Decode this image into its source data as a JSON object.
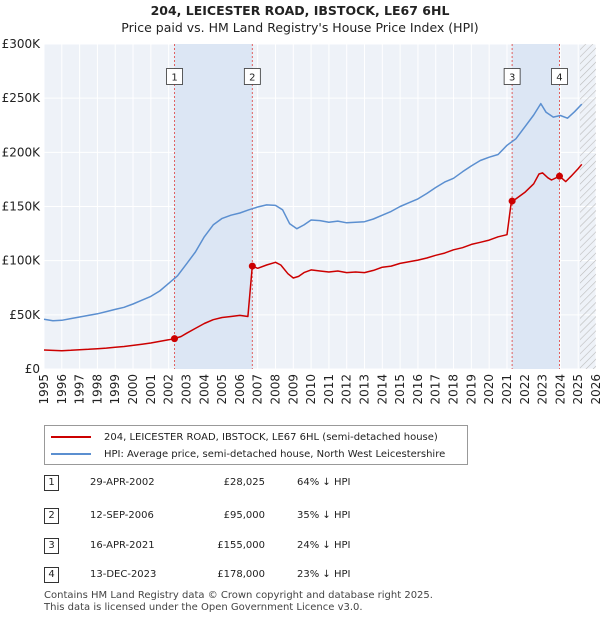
{
  "header": {
    "title": "204, LEICESTER ROAD, IBSTOCK, LE67 6HL",
    "subtitle": "Price paid vs. HM Land Registry's House Price Index (HPI)"
  },
  "chart_data": {
    "type": "line",
    "title": "204, LEICESTER ROAD, IBSTOCK, LE67 6HL",
    "subtitle": "Price paid vs. HM Land Registry's House Price Index (HPI)",
    "xlabel": "",
    "ylabel": "",
    "xlim": [
      1995,
      2026
    ],
    "ylim": [
      0,
      300000
    ],
    "grid": true,
    "y_ticks": [
      0,
      50000,
      100000,
      150000,
      200000,
      250000,
      300000
    ],
    "y_tick_labels": [
      "£0",
      "£50K",
      "£100K",
      "£150K",
      "£200K",
      "£250K",
      "£300K"
    ],
    "x_ticks": [
      1995,
      1996,
      1997,
      1998,
      1999,
      2000,
      2001,
      2002,
      2003,
      2004,
      2005,
      2006,
      2007,
      2008,
      2009,
      2010,
      2011,
      2012,
      2013,
      2014,
      2015,
      2016,
      2017,
      2018,
      2019,
      2020,
      2021,
      2022,
      2023,
      2024,
      2025,
      2026
    ],
    "x_tick_labels": [
      "1995",
      "1996",
      "1997",
      "1998",
      "1999",
      "2000",
      "2001",
      "2002",
      "2003",
      "2004",
      "2005",
      "2006",
      "2007",
      "2008",
      "2009",
      "2010",
      "2011",
      "2012",
      "2013",
      "2014",
      "2015",
      "2016",
      "2017",
      "2018",
      "2019",
      "2020",
      "2021",
      "2022",
      "2023",
      "2024",
      "2025",
      "2026"
    ],
    "future_hatch_from": 2025.1,
    "series": [
      {
        "name": "204, LEICESTER ROAD, IBSTOCK, LE67 6HL (semi-detached house)",
        "color": "#cc0000",
        "points": [
          [
            1995.0,
            17500
          ],
          [
            1995.5,
            17200
          ],
          [
            1996.0,
            16900
          ],
          [
            1996.5,
            17300
          ],
          [
            1997.0,
            17800
          ],
          [
            1997.5,
            18200
          ],
          [
            1998.0,
            18700
          ],
          [
            1998.5,
            19300
          ],
          [
            1999.0,
            20000
          ],
          [
            1999.5,
            20800
          ],
          [
            2000.0,
            21800
          ],
          [
            2000.5,
            22800
          ],
          [
            2001.0,
            24000
          ],
          [
            2001.5,
            25500
          ],
          [
            2002.0,
            27000
          ],
          [
            2002.33,
            28025
          ],
          [
            2002.7,
            30000
          ],
          [
            2003.0,
            33000
          ],
          [
            2003.5,
            37500
          ],
          [
            2004.0,
            42000
          ],
          [
            2004.5,
            45500
          ],
          [
            2005.0,
            47500
          ],
          [
            2005.5,
            48500
          ],
          [
            2006.0,
            49500
          ],
          [
            2006.45,
            48500
          ],
          [
            2006.7,
            95000
          ],
          [
            2007.0,
            93000
          ],
          [
            2007.5,
            96000
          ],
          [
            2008.0,
            98500
          ],
          [
            2008.3,
            96000
          ],
          [
            2008.7,
            88000
          ],
          [
            2009.0,
            84000
          ],
          [
            2009.3,
            85500
          ],
          [
            2009.6,
            89000
          ],
          [
            2010.0,
            91500
          ],
          [
            2010.5,
            90500
          ],
          [
            2011.0,
            89500
          ],
          [
            2011.5,
            90500
          ],
          [
            2012.0,
            89000
          ],
          [
            2012.5,
            89500
          ],
          [
            2013.0,
            89000
          ],
          [
            2013.5,
            91000
          ],
          [
            2014.0,
            94000
          ],
          [
            2014.5,
            95000
          ],
          [
            2015.0,
            97500
          ],
          [
            2015.5,
            99000
          ],
          [
            2016.0,
            100500
          ],
          [
            2016.5,
            102500
          ],
          [
            2017.0,
            105000
          ],
          [
            2017.5,
            107000
          ],
          [
            2018.0,
            110000
          ],
          [
            2018.5,
            112000
          ],
          [
            2019.0,
            115000
          ],
          [
            2019.5,
            117000
          ],
          [
            2020.0,
            119000
          ],
          [
            2020.5,
            122000
          ],
          [
            2021.0,
            124000
          ],
          [
            2021.25,
            155000
          ],
          [
            2021.5,
            157000
          ],
          [
            2022.0,
            163000
          ],
          [
            2022.5,
            171000
          ],
          [
            2022.8,
            180000
          ],
          [
            2023.0,
            181000
          ],
          [
            2023.3,
            176500
          ],
          [
            2023.5,
            174500
          ],
          [
            2023.95,
            178000
          ],
          [
            2024.3,
            173000
          ],
          [
            2024.6,
            178000
          ],
          [
            2025.0,
            185000
          ],
          [
            2025.2,
            189000
          ]
        ]
      },
      {
        "name": "HPI: Average price, semi-detached house, North West Leicestershire",
        "color": "#5b8fd0",
        "points": [
          [
            1995.0,
            46000
          ],
          [
            1995.5,
            44500
          ],
          [
            1996.0,
            45000
          ],
          [
            1996.5,
            46500
          ],
          [
            1997.0,
            48000
          ],
          [
            1997.5,
            49500
          ],
          [
            1998.0,
            51000
          ],
          [
            1998.5,
            53000
          ],
          [
            1999.0,
            55000
          ],
          [
            1999.5,
            57000
          ],
          [
            2000.0,
            60000
          ],
          [
            2000.5,
            63500
          ],
          [
            2001.0,
            67000
          ],
          [
            2001.5,
            72000
          ],
          [
            2002.0,
            79000
          ],
          [
            2002.5,
            86000
          ],
          [
            2003.0,
            97000
          ],
          [
            2003.5,
            108000
          ],
          [
            2004.0,
            122000
          ],
          [
            2004.5,
            133000
          ],
          [
            2005.0,
            139000
          ],
          [
            2005.5,
            142000
          ],
          [
            2006.0,
            144000
          ],
          [
            2006.5,
            147000
          ],
          [
            2007.0,
            149500
          ],
          [
            2007.5,
            151500
          ],
          [
            2008.0,
            151000
          ],
          [
            2008.4,
            147000
          ],
          [
            2008.8,
            134000
          ],
          [
            2009.2,
            129500
          ],
          [
            2009.6,
            133000
          ],
          [
            2010.0,
            137500
          ],
          [
            2010.5,
            137000
          ],
          [
            2011.0,
            135500
          ],
          [
            2011.5,
            136500
          ],
          [
            2012.0,
            135000
          ],
          [
            2012.5,
            135500
          ],
          [
            2013.0,
            136000
          ],
          [
            2013.5,
            138500
          ],
          [
            2014.0,
            142000
          ],
          [
            2014.5,
            145500
          ],
          [
            2015.0,
            150000
          ],
          [
            2015.5,
            153500
          ],
          [
            2016.0,
            157000
          ],
          [
            2016.5,
            162000
          ],
          [
            2017.0,
            167500
          ],
          [
            2017.5,
            172500
          ],
          [
            2018.0,
            176000
          ],
          [
            2018.5,
            182000
          ],
          [
            2019.0,
            187500
          ],
          [
            2019.5,
            192500
          ],
          [
            2020.0,
            195500
          ],
          [
            2020.5,
            198000
          ],
          [
            2021.0,
            206500
          ],
          [
            2021.5,
            212500
          ],
          [
            2022.0,
            223500
          ],
          [
            2022.5,
            234500
          ],
          [
            2022.9,
            245000
          ],
          [
            2023.2,
            237000
          ],
          [
            2023.6,
            232500
          ],
          [
            2024.0,
            234000
          ],
          [
            2024.4,
            231500
          ],
          [
            2024.8,
            237500
          ],
          [
            2025.2,
            244500
          ]
        ]
      }
    ],
    "markers": [
      {
        "label": "1",
        "date": 2002.33,
        "price": 28025
      },
      {
        "label": "2",
        "date": 2006.7,
        "price": 95000
      },
      {
        "label": "3",
        "date": 2021.29,
        "price": 155000
      },
      {
        "label": "4",
        "date": 2023.95,
        "price": 178000
      }
    ],
    "annotation_box_value": 270000
  },
  "legend": {
    "items": [
      {
        "label": "204, LEICESTER ROAD, IBSTOCK, LE67 6HL (semi-detached house)",
        "color": "#cc0000"
      },
      {
        "label": "HPI: Average price, semi-detached house, North West Leicestershire",
        "color": "#5b8fd0"
      }
    ]
  },
  "transactions": [
    {
      "num": "1",
      "date": "29-APR-2002",
      "price": "£28,025",
      "hpi": "64% ↓ HPI"
    },
    {
      "num": "2",
      "date": "12-SEP-2006",
      "price": "£95,000",
      "hpi": "35% ↓ HPI"
    },
    {
      "num": "3",
      "date": "16-APR-2021",
      "price": "£155,000",
      "hpi": "24% ↓ HPI"
    },
    {
      "num": "4",
      "date": "13-DEC-2023",
      "price": "£178,000",
      "hpi": "23% ↓ HPI"
    }
  ],
  "footer": {
    "line1": "Contains HM Land Registry data © Crown copyright and database right 2025.",
    "line2": "This data is licensed under the Open Government Licence v3.0."
  }
}
